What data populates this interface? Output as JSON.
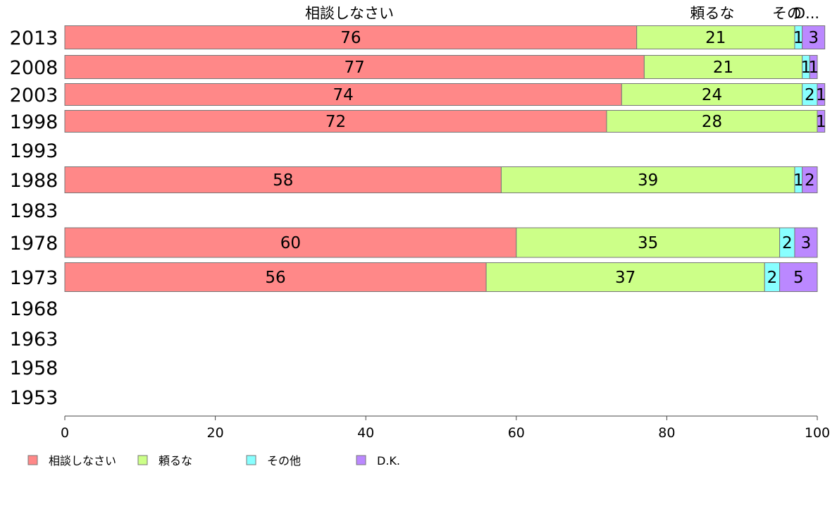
{
  "chart_data": {
    "type": "bar",
    "orientation": "horizontal",
    "stacked": true,
    "categories": [
      "2013",
      "2008",
      "2003",
      "1998",
      "1993",
      "1988",
      "1983",
      "1978",
      "1973",
      "1968",
      "1963",
      "1958",
      "1953"
    ],
    "series": [
      {
        "name": "相談しなさい",
        "color": "#ff8888",
        "values": [
          76,
          77,
          74,
          72,
          null,
          58,
          null,
          60,
          56,
          null,
          null,
          null,
          null
        ]
      },
      {
        "name": "頼るな",
        "color": "#ccff88",
        "values": [
          21,
          21,
          24,
          28,
          null,
          39,
          null,
          35,
          37,
          null,
          null,
          null,
          null
        ]
      },
      {
        "name": "その他",
        "color": "#88ffff",
        "values": [
          1,
          1,
          2,
          0,
          null,
          1,
          null,
          2,
          2,
          null,
          null,
          null,
          null
        ]
      },
      {
        "name": "D.K.",
        "color": "#bb88ff",
        "values": [
          3,
          1,
          1,
          1,
          null,
          2,
          null,
          3,
          5,
          null,
          null,
          null,
          null
        ]
      }
    ],
    "top_labels": [
      "相談しなさい",
      "頼るな",
      "その",
      "D..."
    ],
    "xlim": [
      0,
      100
    ],
    "x_ticks": [
      0,
      20,
      40,
      60,
      80,
      100
    ],
    "x_tick_labels": [
      "0",
      "20",
      "40",
      "60",
      "80",
      "100"
    ],
    "legend_position": "bottom-left",
    "grid": false
  },
  "legend": {
    "items": [
      "相談しなさい",
      "頼るな",
      "その他",
      "D.K."
    ]
  }
}
